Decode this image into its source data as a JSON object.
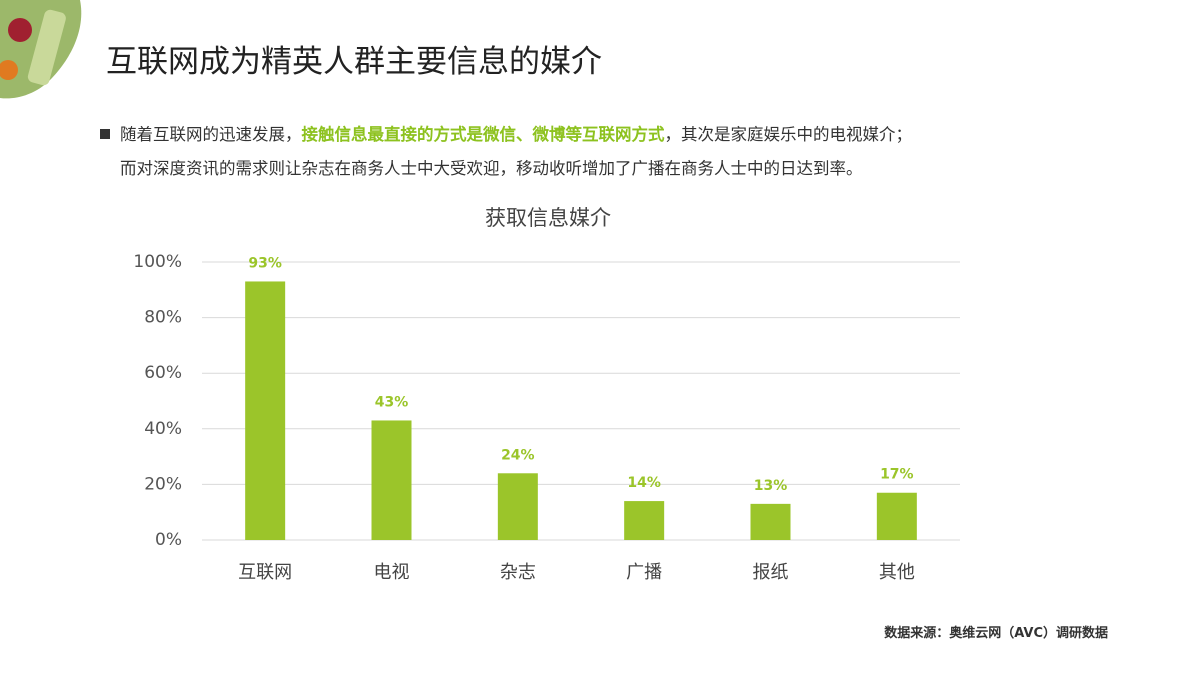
{
  "header": {
    "title": "互联网成为精英人群主要信息的媒介"
  },
  "bullet": {
    "line1": [
      "随着互联网的迅速发展，",
      "接触信息最直接的方式是微信、微博等互联网方式",
      "，其次是家庭娱乐中的电视媒介；"
    ],
    "line2": "而对深度资讯的需求则让杂志在商务人士中大受欢迎，移动收听增加了广播在商务人士中的日达到率。"
  },
  "chart_data": {
    "type": "bar",
    "title": "获取信息媒介",
    "categories": [
      "互联网",
      "电视",
      "杂志",
      "广播",
      "报纸",
      "其他"
    ],
    "values": [
      93,
      43,
      24,
      14,
      13,
      17
    ],
    "value_labels": [
      "93%",
      "43%",
      "24%",
      "14%",
      "13%",
      "17%"
    ],
    "color": "#9bc52a",
    "ylim": [
      0,
      100
    ],
    "yticks": [
      {
        "value": 0,
        "label": "0%"
      },
      {
        "value": 20,
        "label": "20%"
      },
      {
        "value": 40,
        "label": "40%"
      },
      {
        "value": 60,
        "label": "60%"
      },
      {
        "value": 80,
        "label": "80%"
      },
      {
        "value": 100,
        "label": "100%"
      }
    ],
    "grid": true
  },
  "source": "数据来源：奥维云网（AVC）调研数据"
}
